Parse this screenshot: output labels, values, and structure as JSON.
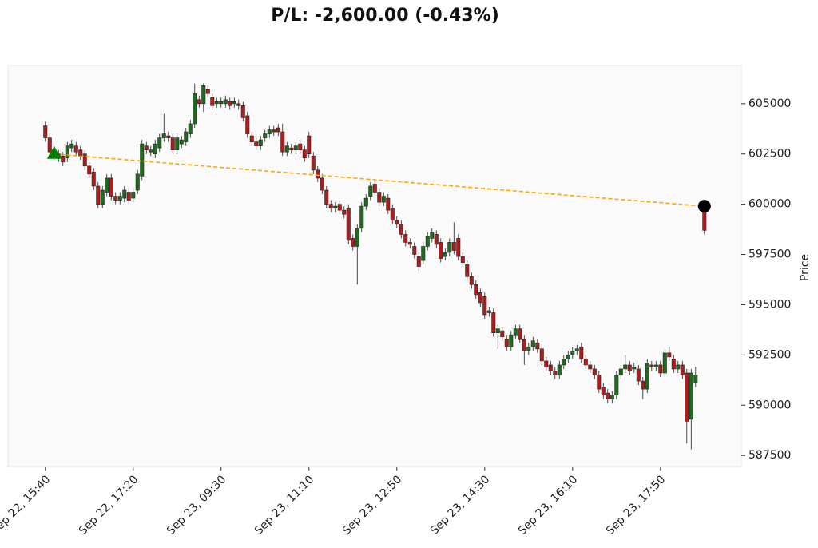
{
  "chart_data": {
    "type": "candlestick",
    "title": "P/L: -2,600.00 (-0.43%)",
    "ylabel": "Price",
    "xlim": [
      -8.5,
      158.4
    ],
    "xticks": [
      {
        "value": 0,
        "label": "Sep 22, 15:40"
      },
      {
        "value": 20,
        "label": "Sep 22, 17:20"
      },
      {
        "value": 40,
        "label": "Sep 23, 09:30"
      },
      {
        "value": 60,
        "label": "Sep 23, 11:10"
      },
      {
        "value": 80,
        "label": "Sep 23, 12:50"
      },
      {
        "value": 100,
        "label": "Sep 23, 14:30"
      },
      {
        "value": 120,
        "label": "Sep 23, 16:10"
      },
      {
        "value": 140,
        "label": "Sep 23, 17:50"
      }
    ],
    "ylim": [
      586950,
      606900
    ],
    "yticks": [
      587500,
      590000,
      592500,
      595000,
      597500,
      600000,
      602500,
      605000
    ],
    "up_color": "#1e6b1e",
    "down_color": "#b01c1c",
    "open": [
      603900,
      603300,
      602600,
      602300,
      602400,
      602300,
      602800,
      602900,
      602700,
      602500,
      601900,
      601600,
      600900,
      600000,
      600600,
      601300,
      600400,
      600200,
      600300,
      600600,
      600300,
      600700,
      601400,
      602900,
      602600,
      602500,
      602800,
      603300,
      603400,
      603300,
      602700,
      603000,
      603100,
      603500,
      604000,
      605200,
      605000,
      605700,
      605300,
      605000,
      605000,
      605000,
      605100,
      605000,
      605000,
      604900,
      604400,
      603400,
      603100,
      602900,
      603300,
      603500,
      603700,
      603800,
      603600,
      602600,
      602800,
      602700,
      603000,
      602700,
      603400,
      602400,
      601700,
      601300,
      600700,
      600000,
      599800,
      600000,
      599700,
      599800,
      598300,
      597900,
      598800,
      599900,
      600400,
      601000,
      600600,
      600100,
      600300,
      599800,
      599200,
      599000,
      598500,
      598100,
      597900,
      597400,
      597200,
      597900,
      598300,
      598500,
      598100,
      597400,
      597600,
      598100,
      598300,
      597400,
      597000,
      596400,
      596000,
      595600,
      595400,
      594600,
      594600,
      593600,
      593700,
      593300,
      592900,
      593500,
      593800,
      593300,
      592700,
      592900,
      593100,
      592800,
      592200,
      592000,
      591700,
      591500,
      592000,
      592300,
      592500,
      592700,
      592900,
      592300,
      592000,
      591800,
      591500,
      590900,
      590600,
      590300,
      590500,
      591500,
      591800,
      592000,
      591800,
      591800,
      591200,
      590800,
      592000,
      591900,
      592000,
      591600,
      592600,
      592300,
      591800,
      592000,
      591600,
      589300,
      591100,
      null,
      599900
    ],
    "high": [
      604100,
      603500,
      602800,
      602700,
      602600,
      603100,
      603200,
      603100,
      602900,
      602700,
      602100,
      601800,
      601100,
      600900,
      601500,
      601500,
      600600,
      600600,
      600900,
      600800,
      600800,
      601700,
      603200,
      603100,
      602900,
      603200,
      603500,
      604500,
      603600,
      603500,
      603500,
      603400,
      603800,
      604200,
      606000,
      605400,
      606000,
      605900,
      605500,
      605300,
      605300,
      605400,
      605300,
      605300,
      605200,
      605100,
      604600,
      603600,
      603300,
      603400,
      603700,
      603900,
      603900,
      604000,
      604000,
      603100,
      603000,
      603100,
      603200,
      602900,
      603600,
      602600,
      601900,
      601500,
      600900,
      600200,
      600100,
      600200,
      599900,
      600000,
      598500,
      599000,
      600100,
      600500,
      601100,
      601200,
      600800,
      600600,
      600500,
      600000,
      599400,
      599200,
      598700,
      598300,
      598100,
      597600,
      598100,
      598600,
      598800,
      598700,
      598300,
      597800,
      598300,
      599100,
      598500,
      597600,
      597200,
      596600,
      596200,
      595800,
      595600,
      594900,
      594800,
      594000,
      593900,
      593500,
      593700,
      594000,
      594000,
      593500,
      593100,
      593400,
      593300,
      593000,
      592400,
      592200,
      591900,
      592200,
      592500,
      592700,
      592900,
      593000,
      593100,
      592500,
      592200,
      592000,
      591700,
      591100,
      590800,
      590700,
      591700,
      592000,
      592500,
      592200,
      592100,
      592000,
      591400,
      592300,
      592200,
      592200,
      592200,
      592800,
      592900,
      592500,
      592200,
      592200,
      591800,
      591800,
      591900,
      null,
      600100
    ],
    "low": [
      603100,
      602400,
      602200,
      602100,
      601900,
      602100,
      602600,
      602400,
      602200,
      601700,
      601300,
      600700,
      599800,
      599800,
      600400,
      600200,
      600000,
      600000,
      600100,
      600000,
      600100,
      600500,
      601200,
      602500,
      602400,
      602300,
      602600,
      603100,
      603100,
      602500,
      602500,
      602800,
      602900,
      603300,
      603800,
      604800,
      604600,
      605300,
      604700,
      604800,
      604800,
      604800,
      604700,
      604800,
      604700,
      604100,
      603300,
      602900,
      602700,
      602700,
      603100,
      603300,
      603400,
      603400,
      602400,
      602400,
      602500,
      602500,
      602500,
      602100,
      602300,
      601500,
      601100,
      600500,
      599800,
      599600,
      599600,
      599500,
      599300,
      598000,
      597700,
      596000,
      598600,
      599700,
      600200,
      600400,
      599900,
      599900,
      599500,
      599000,
      598800,
      598300,
      597900,
      597800,
      597300,
      596700,
      597000,
      597700,
      598100,
      597800,
      597100,
      597200,
      597400,
      597500,
      597200,
      596900,
      596200,
      595800,
      595300,
      594900,
      594300,
      594400,
      593400,
      592800,
      593200,
      592700,
      592700,
      593300,
      593100,
      592000,
      592500,
      592700,
      592600,
      592000,
      591700,
      591500,
      591300,
      591300,
      591800,
      592100,
      592300,
      592500,
      592100,
      591800,
      591600,
      591300,
      590600,
      590300,
      590100,
      590100,
      590300,
      591300,
      591600,
      591500,
      591600,
      591000,
      590300,
      590600,
      591700,
      591700,
      591400,
      591400,
      592200,
      591600,
      591600,
      591300,
      588100,
      587800,
      590900,
      null,
      598500
    ],
    "close": [
      603300,
      602600,
      602400,
      602500,
      602100,
      602900,
      603000,
      602600,
      602400,
      601900,
      601500,
      600900,
      600000,
      600700,
      601300,
      600400,
      600200,
      600400,
      600700,
      600200,
      600600,
      601500,
      603000,
      602700,
      602700,
      603000,
      603300,
      603500,
      603300,
      602700,
      603300,
      603200,
      603600,
      604000,
      605500,
      605000,
      605900,
      605500,
      604900,
      605100,
      605100,
      605200,
      604900,
      605100,
      604900,
      604300,
      603500,
      603100,
      602900,
      603200,
      603500,
      603700,
      603600,
      603600,
      602600,
      602900,
      602700,
      602900,
      602700,
      602300,
      602500,
      601700,
      601300,
      600700,
      600000,
      599800,
      599900,
      599700,
      599500,
      598200,
      597900,
      598800,
      599900,
      600300,
      600900,
      600600,
      600100,
      600400,
      599700,
      599200,
      599000,
      598500,
      598100,
      598000,
      597500,
      596900,
      597900,
      598400,
      598600,
      598000,
      597300,
      597600,
      598100,
      597700,
      597400,
      597100,
      596400,
      596000,
      595500,
      595100,
      594500,
      594700,
      593600,
      593800,
      593400,
      592900,
      593500,
      593800,
      593300,
      592700,
      592900,
      593200,
      592800,
      592200,
      591900,
      591700,
      591500,
      592000,
      592300,
      592500,
      592700,
      592800,
      592300,
      592000,
      591800,
      591500,
      590800,
      590500,
      590300,
      590500,
      591500,
      591800,
      592000,
      591700,
      591900,
      591200,
      590800,
      592100,
      591900,
      592000,
      591600,
      592600,
      592400,
      591800,
      592000,
      591500,
      589200,
      591600,
      591500,
      null,
      598700
    ],
    "entry": {
      "x": 2,
      "price": 602500,
      "color": "#008000"
    },
    "exit": {
      "x": 150,
      "price": 599900,
      "color": "#000000"
    },
    "trade_line_color": "#ffa500"
  }
}
